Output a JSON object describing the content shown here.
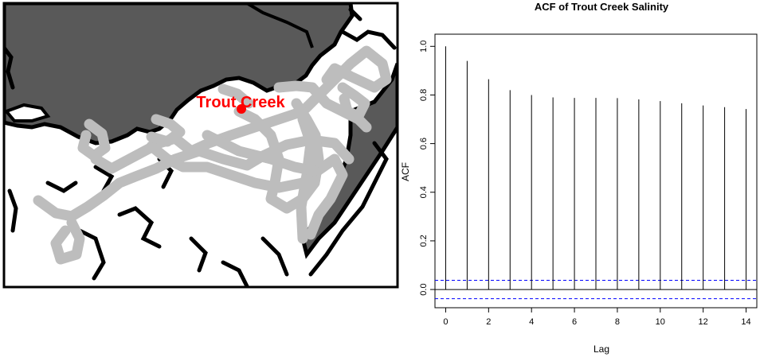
{
  "map": {
    "site_label": "Trout Creek",
    "colors": {
      "land": "#595959",
      "water": "#ffffff",
      "coast": "#000000",
      "track": "#bdbdbd",
      "site": "#ff0000",
      "border": "#000000"
    },
    "icons": {
      "site_marker": "red-dot-icon"
    }
  },
  "chart_data": {
    "type": "bar",
    "title": "ACF of Trout Creek Salinity",
    "xlabel": "Lag",
    "ylabel": "ACF",
    "x": [
      0,
      1,
      2,
      3,
      4,
      5,
      6,
      7,
      8,
      9,
      10,
      11,
      12,
      13,
      14
    ],
    "values": [
      1.0,
      0.94,
      0.865,
      0.82,
      0.8,
      0.79,
      0.788,
      0.788,
      0.787,
      0.782,
      0.775,
      0.766,
      0.757,
      0.75,
      0.742
    ],
    "xlim": [
      -0.5,
      14.5
    ],
    "ylim": [
      -0.075,
      1.05
    ],
    "xticks": [
      "0",
      "2",
      "4",
      "6",
      "8",
      "10",
      "12",
      "14"
    ],
    "yticks": [
      "0.0",
      "0.2",
      "0.4",
      "0.6",
      "0.8",
      "1.0"
    ],
    "confidence_bound": 0.038,
    "grid": false,
    "colors": {
      "bars": "#000000",
      "confidence": "#0000ff",
      "zero_line": "#000000"
    }
  }
}
